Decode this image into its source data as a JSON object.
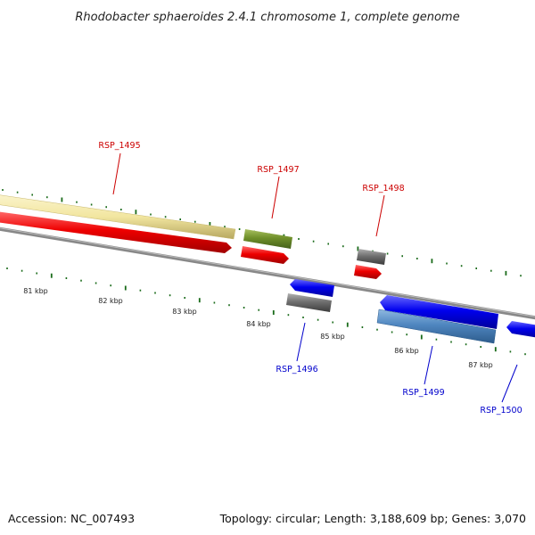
{
  "title": "Rhodobacter sphaeroides 2.4.1 chromosome 1, complete genome",
  "footer": {
    "accession": "Accession: NC_007493",
    "topology": "Topology: circular; Length: 3,188,609 bp; Genes: 3,070"
  },
  "colors": {
    "forward_label": "#cc0000",
    "reverse_label": "#0000cc",
    "tick": "#1a6b1a",
    "backbone": "#888888",
    "red_gene": "#ee0000",
    "blue_gene": "#0000ee",
    "grey_gene": "#707070",
    "olive_gene": "#6f8f2a",
    "khaki_feature": "#f2e6a0",
    "steel_feature": "#4f86c0"
  },
  "kbp_labels": [
    "81 kbp",
    "82 kbp",
    "83 kbp",
    "84 kbp",
    "85 kbp",
    "86 kbp",
    "87 kbp"
  ],
  "gene_labels": [
    {
      "name": "RSP_1495",
      "strand": "forward"
    },
    {
      "name": "RSP_1497",
      "strand": "forward"
    },
    {
      "name": "RSP_1498",
      "strand": "forward"
    },
    {
      "name": "RSP_1496",
      "strand": "reverse"
    },
    {
      "name": "RSP_1499",
      "strand": "reverse"
    },
    {
      "name": "RSP_1500",
      "strand": "reverse"
    }
  ]
}
